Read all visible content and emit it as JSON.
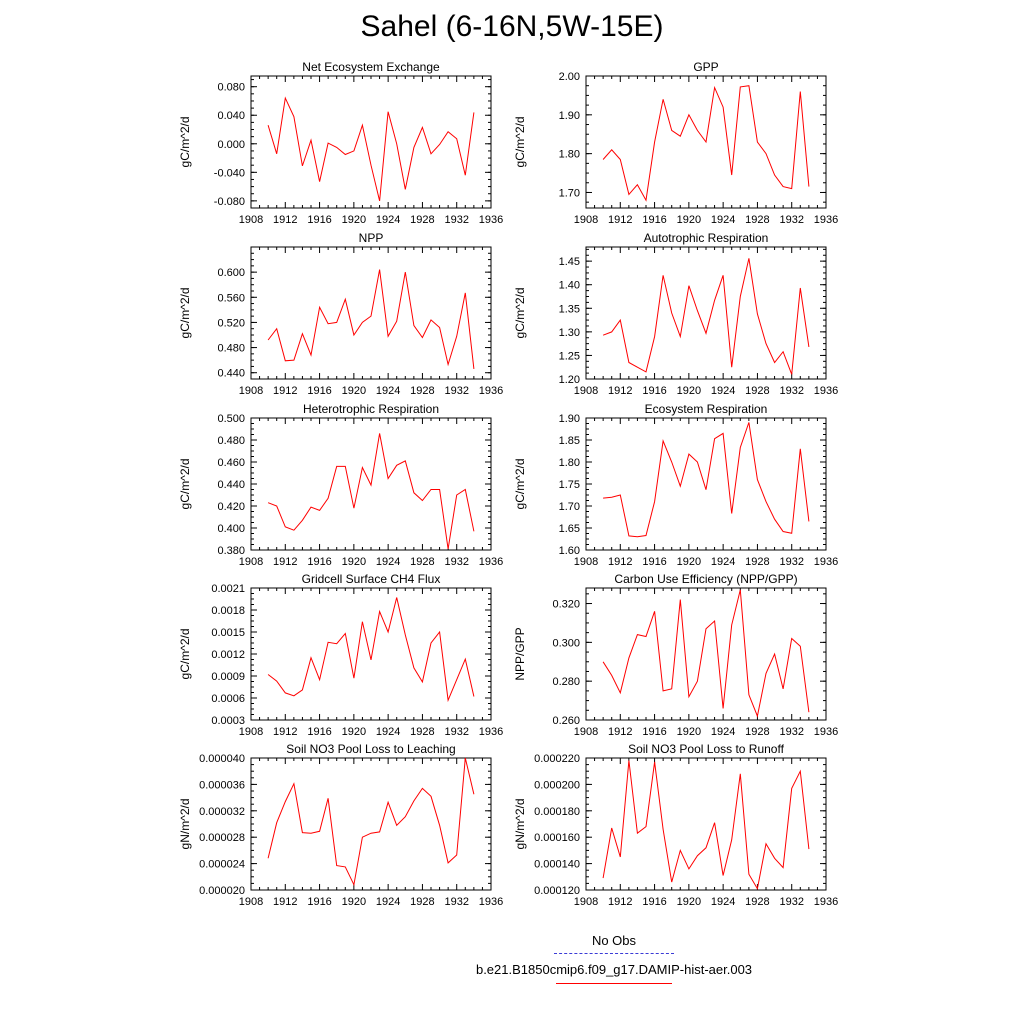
{
  "title": "Sahel (6-16N,5W-15E)",
  "legend": {
    "obs_label": "No Obs",
    "model_label": "b.e21.B1850cmip6.f09_g17.DAMIP-hist-aer.003",
    "obs_color": "#3b3bd6",
    "model_color": "#ff0000"
  },
  "chart_data": [
    {
      "type": "line",
      "title": "Net Ecosystem Exchange",
      "ylabel": "gC/m^2/d",
      "xlim": [
        1908,
        1936
      ],
      "ylim": [
        -0.09,
        0.095
      ],
      "xticks": [
        "1908",
        "1912",
        "1916",
        "1920",
        "1924",
        "1928",
        "1932",
        "1936"
      ],
      "yticks": [
        "-0.080",
        "-0.040",
        "0.000",
        "0.040",
        "0.080"
      ],
      "series": [
        {
          "color": "#ff0000",
          "x": [
            1910,
            1911,
            1912,
            1913,
            1914,
            1915,
            1916,
            1917,
            1918,
            1919,
            1920,
            1921,
            1922,
            1923,
            1924,
            1925,
            1926,
            1927,
            1928,
            1929,
            1930,
            1931,
            1932,
            1933,
            1934
          ],
          "y": [
            0.026,
            -0.014,
            0.064,
            0.038,
            -0.031,
            0.005,
            -0.053,
            0.001,
            -0.005,
            -0.015,
            -0.01,
            0.026,
            -0.03,
            -0.08,
            0.045,
            0.0,
            -0.064,
            -0.005,
            0.023,
            -0.014,
            -0.001,
            0.017,
            0.007,
            -0.044,
            0.044
          ]
        }
      ]
    },
    {
      "type": "line",
      "title": "GPP",
      "ylabel": "gC/m^2/d",
      "xlim": [
        1908,
        1936
      ],
      "ylim": [
        1.66,
        2.0
      ],
      "xticks": [
        "1908",
        "1912",
        "1916",
        "1920",
        "1924",
        "1928",
        "1932",
        "1936"
      ],
      "yticks": [
        "1.70",
        "1.80",
        "1.90",
        "2.00"
      ],
      "series": [
        {
          "color": "#ff0000",
          "x": [
            1910,
            1911,
            1912,
            1913,
            1914,
            1915,
            1916,
            1917,
            1918,
            1919,
            1920,
            1921,
            1922,
            1923,
            1924,
            1925,
            1926,
            1927,
            1928,
            1929,
            1930,
            1931,
            1932,
            1933,
            1934
          ],
          "y": [
            1.785,
            1.81,
            1.785,
            1.695,
            1.72,
            1.68,
            1.83,
            1.94,
            1.86,
            1.845,
            1.9,
            1.86,
            1.83,
            1.97,
            1.92,
            1.745,
            1.972,
            1.975,
            1.83,
            1.8,
            1.745,
            1.715,
            1.71,
            1.96,
            1.715
          ]
        }
      ]
    },
    {
      "type": "line",
      "title": "NPP",
      "ylabel": "gC/m^2/d",
      "xlim": [
        1908,
        1936
      ],
      "ylim": [
        0.43,
        0.64
      ],
      "xticks": [
        "1908",
        "1912",
        "1916",
        "1920",
        "1924",
        "1928",
        "1932",
        "1936"
      ],
      "yticks": [
        "0.440",
        "0.480",
        "0.520",
        "0.560",
        "0.600"
      ],
      "series": [
        {
          "color": "#ff0000",
          "x": [
            1910,
            1911,
            1912,
            1913,
            1914,
            1915,
            1916,
            1917,
            1918,
            1919,
            1920,
            1921,
            1922,
            1923,
            1924,
            1925,
            1926,
            1927,
            1928,
            1929,
            1930,
            1931,
            1932,
            1933,
            1934
          ],
          "y": [
            0.492,
            0.51,
            0.459,
            0.46,
            0.502,
            0.468,
            0.544,
            0.518,
            0.52,
            0.557,
            0.5,
            0.52,
            0.53,
            0.604,
            0.498,
            0.522,
            0.6,
            0.515,
            0.496,
            0.524,
            0.512,
            0.453,
            0.498,
            0.567,
            0.446
          ]
        }
      ]
    },
    {
      "type": "line",
      "title": "Autotrophic Respiration",
      "ylabel": "gC/m^2/d",
      "xlim": [
        1908,
        1936
      ],
      "ylim": [
        1.2,
        1.48
      ],
      "xticks": [
        "1908",
        "1912",
        "1916",
        "1920",
        "1924",
        "1928",
        "1932",
        "1936"
      ],
      "yticks": [
        "1.20",
        "1.25",
        "1.30",
        "1.35",
        "1.40",
        "1.45"
      ],
      "series": [
        {
          "color": "#ff0000",
          "x": [
            1910,
            1911,
            1912,
            1913,
            1914,
            1915,
            1916,
            1917,
            1918,
            1919,
            1920,
            1921,
            1922,
            1923,
            1924,
            1925,
            1926,
            1927,
            1928,
            1929,
            1930,
            1931,
            1932,
            1933,
            1934
          ],
          "y": [
            1.293,
            1.3,
            1.325,
            1.235,
            1.225,
            1.215,
            1.29,
            1.42,
            1.34,
            1.29,
            1.398,
            1.345,
            1.297,
            1.367,
            1.42,
            1.225,
            1.375,
            1.456,
            1.338,
            1.275,
            1.235,
            1.258,
            1.21,
            1.393,
            1.268
          ]
        }
      ]
    },
    {
      "type": "line",
      "title": "Heterotrophic Respiration",
      "ylabel": "gC/m^2/d",
      "xlim": [
        1908,
        1936
      ],
      "ylim": [
        0.38,
        0.5
      ],
      "xticks": [
        "1908",
        "1912",
        "1916",
        "1920",
        "1924",
        "1928",
        "1932",
        "1936"
      ],
      "yticks": [
        "0.380",
        "0.400",
        "0.420",
        "0.440",
        "0.460",
        "0.480",
        "0.500"
      ],
      "series": [
        {
          "color": "#ff0000",
          "x": [
            1910,
            1911,
            1912,
            1913,
            1914,
            1915,
            1916,
            1917,
            1918,
            1919,
            1920,
            1921,
            1922,
            1923,
            1924,
            1925,
            1926,
            1927,
            1928,
            1929,
            1930,
            1931,
            1932,
            1933,
            1934
          ],
          "y": [
            0.423,
            0.42,
            0.401,
            0.398,
            0.407,
            0.419,
            0.416,
            0.427,
            0.456,
            0.456,
            0.418,
            0.455,
            0.439,
            0.486,
            0.445,
            0.457,
            0.461,
            0.432,
            0.425,
            0.435,
            0.435,
            0.381,
            0.43,
            0.435,
            0.397
          ]
        }
      ]
    },
    {
      "type": "line",
      "title": "Ecosystem Respiration",
      "ylabel": "gC/m^2/d",
      "xlim": [
        1908,
        1936
      ],
      "ylim": [
        1.6,
        1.9
      ],
      "xticks": [
        "1908",
        "1912",
        "1916",
        "1920",
        "1924",
        "1928",
        "1932",
        "1936"
      ],
      "yticks": [
        "1.60",
        "1.65",
        "1.70",
        "1.75",
        "1.80",
        "1.85",
        "1.90"
      ],
      "series": [
        {
          "color": "#ff0000",
          "x": [
            1910,
            1911,
            1912,
            1913,
            1914,
            1915,
            1916,
            1917,
            1918,
            1919,
            1920,
            1921,
            1922,
            1923,
            1924,
            1925,
            1926,
            1927,
            1928,
            1929,
            1930,
            1931,
            1932,
            1933,
            1934
          ],
          "y": [
            1.718,
            1.72,
            1.725,
            1.632,
            1.63,
            1.633,
            1.71,
            1.848,
            1.8,
            1.745,
            1.818,
            1.8,
            1.737,
            1.853,
            1.865,
            1.683,
            1.833,
            1.89,
            1.76,
            1.71,
            1.67,
            1.642,
            1.638,
            1.83,
            1.665
          ]
        }
      ]
    },
    {
      "type": "line",
      "title": "Gridcell Surface CH4 Flux",
      "ylabel": "gC/m^2/d",
      "xlim": [
        1908,
        1936
      ],
      "ylim": [
        0.0003,
        0.0021
      ],
      "xticks": [
        "1908",
        "1912",
        "1916",
        "1920",
        "1924",
        "1928",
        "1932",
        "1936"
      ],
      "yticks": [
        "0.0003",
        "0.0006",
        "0.0009",
        "0.0012",
        "0.0015",
        "0.0018",
        "0.0021"
      ],
      "series": [
        {
          "color": "#ff0000",
          "x": [
            1910,
            1911,
            1912,
            1913,
            1914,
            1915,
            1916,
            1917,
            1918,
            1919,
            1920,
            1921,
            1922,
            1923,
            1924,
            1925,
            1926,
            1927,
            1928,
            1929,
            1930,
            1931,
            1932,
            1933,
            1934
          ],
          "y": [
            0.00092,
            0.00083,
            0.00067,
            0.00063,
            0.00071,
            0.00115,
            0.00085,
            0.00136,
            0.00134,
            0.00148,
            0.00087,
            0.00164,
            0.00112,
            0.00178,
            0.0015,
            0.00197,
            0.00146,
            0.00101,
            0.00082,
            0.00135,
            0.0015,
            0.00057,
            0.00085,
            0.00113,
            0.00062
          ]
        }
      ]
    },
    {
      "type": "line",
      "title": "Carbon Use Efficiency (NPP/GPP)",
      "ylabel": "NPP/GPP",
      "xlim": [
        1908,
        1936
      ],
      "ylim": [
        0.26,
        0.328
      ],
      "xticks": [
        "1908",
        "1912",
        "1916",
        "1920",
        "1924",
        "1928",
        "1932",
        "1936"
      ],
      "yticks": [
        "0.260",
        "0.280",
        "0.300",
        "0.320"
      ],
      "series": [
        {
          "color": "#ff0000",
          "x": [
            1910,
            1911,
            1912,
            1913,
            1914,
            1915,
            1916,
            1917,
            1918,
            1919,
            1920,
            1921,
            1922,
            1923,
            1924,
            1925,
            1926,
            1927,
            1928,
            1929,
            1930,
            1931,
            1932,
            1933,
            1934
          ],
          "y": [
            0.29,
            0.283,
            0.274,
            0.292,
            0.304,
            0.303,
            0.316,
            0.275,
            0.276,
            0.322,
            0.272,
            0.28,
            0.307,
            0.311,
            0.266,
            0.309,
            0.327,
            0.273,
            0.262,
            0.284,
            0.294,
            0.276,
            0.302,
            0.298,
            0.264
          ]
        }
      ]
    },
    {
      "type": "line",
      "title": "Soil NO3 Pool Loss to Leaching",
      "ylabel": "gN/m^2/d",
      "xlim": [
        1908,
        1936
      ],
      "ylim": [
        2e-05,
        4e-05
      ],
      "xticks": [
        "1908",
        "1912",
        "1916",
        "1920",
        "1924",
        "1928",
        "1932",
        "1936"
      ],
      "yticks": [
        "0.000020",
        "0.000024",
        "0.000028",
        "0.000032",
        "0.000036",
        "0.000040"
      ],
      "series": [
        {
          "color": "#ff0000",
          "x": [
            1910,
            1911,
            1912,
            1913,
            1914,
            1915,
            1916,
            1917,
            1918,
            1919,
            1920,
            1921,
            1922,
            1923,
            1924,
            1925,
            1926,
            1927,
            1928,
            1929,
            1930,
            1931,
            1932,
            1933,
            1934
          ],
          "y": [
            2.48e-05,
            3.02e-05,
            3.34e-05,
            3.61e-05,
            2.87e-05,
            2.86e-05,
            2.89e-05,
            3.39e-05,
            2.37e-05,
            2.35e-05,
            2.08e-05,
            2.8e-05,
            2.86e-05,
            2.88e-05,
            3.33e-05,
            2.98e-05,
            3.11e-05,
            3.35e-05,
            3.54e-05,
            3.42e-05,
            2.98e-05,
            2.41e-05,
            2.53e-05,
            4e-05,
            3.45e-05
          ]
        }
      ]
    },
    {
      "type": "line",
      "title": "Soil NO3 Pool Loss to Runoff",
      "ylabel": "gN/m^2/d",
      "xlim": [
        1908,
        1936
      ],
      "ylim": [
        0.00012,
        0.00022
      ],
      "xticks": [
        "1908",
        "1912",
        "1916",
        "1920",
        "1924",
        "1928",
        "1932",
        "1936"
      ],
      "yticks": [
        "0.000120",
        "0.000140",
        "0.000160",
        "0.000180",
        "0.000200",
        "0.000220"
      ],
      "series": [
        {
          "color": "#ff0000",
          "x": [
            1910,
            1911,
            1912,
            1913,
            1914,
            1915,
            1916,
            1917,
            1918,
            1919,
            1920,
            1921,
            1922,
            1923,
            1924,
            1925,
            1926,
            1927,
            1928,
            1929,
            1930,
            1931,
            1932,
            1933,
            1934
          ],
          "y": [
            0.000129,
            0.000167,
            0.000145,
            0.000218,
            0.000163,
            0.000168,
            0.000217,
            0.000166,
            0.000126,
            0.00015,
            0.000136,
            0.000146,
            0.000152,
            0.000171,
            0.000131,
            0.000158,
            0.000208,
            0.000132,
            0.000121,
            0.000155,
            0.000144,
            0.000137,
            0.000197,
            0.00021,
            0.000151
          ]
        }
      ]
    }
  ]
}
